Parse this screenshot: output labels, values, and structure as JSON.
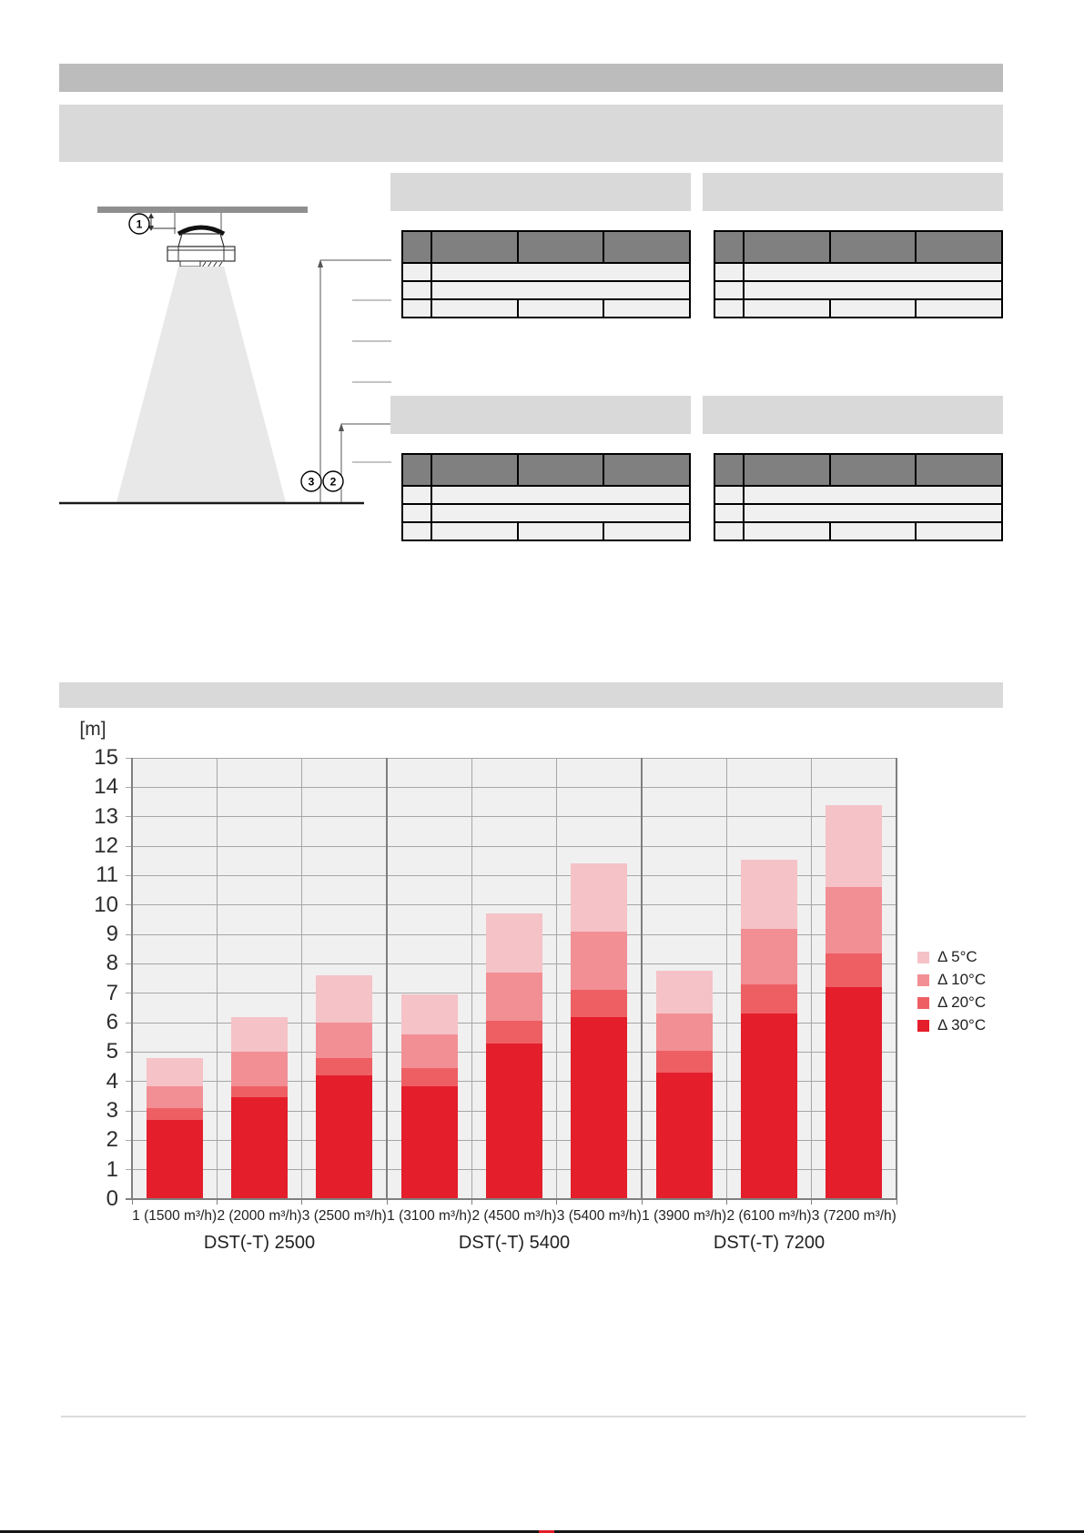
{
  "page": {
    "background": "#ffffff"
  },
  "header_bands": {
    "primary": {
      "text": "",
      "color": "#bcbcbc"
    },
    "secondary": {
      "text": "",
      "color": "#d9d9d9"
    }
  },
  "diagram": {
    "callouts": [
      "1",
      "2",
      "3"
    ],
    "ceiling_color": "#8f8f8f",
    "cone_color": "#e8e8e8"
  },
  "tables": {
    "titles": [
      "",
      "",
      "",
      ""
    ],
    "header_color": "#808080",
    "body_color": "#f0f0f0",
    "border_color": "#000000",
    "title_bar_color": "#d9d9d9"
  },
  "chart_section": {
    "band_text": "",
    "band_color": "#d9d9d9"
  },
  "chart_data": {
    "type": "bar",
    "stacked": true,
    "title": "",
    "ylabel": "[m]",
    "xlabel": "",
    "ylim": [
      0,
      15
    ],
    "ytick_step": 1,
    "grid": true,
    "plot_bg": "#f0f0f0",
    "gridline_color": "#a6a6a6",
    "separator_color": "#7f7f7f",
    "categories": [
      "1 (1500 m³/h)",
      "2 (2000 m³/h)",
      "3 (2500 m³/h)",
      "1 (3100 m³/h)",
      "2 (4500 m³/h)",
      "3 (5400 m³/h)",
      "1 (3900 m³/h)",
      "2 (6100 m³/h)",
      "3 (7200 m³/h)"
    ],
    "groups": [
      {
        "label": "DST(-T) 2500",
        "span": [
          0,
          2
        ]
      },
      {
        "label": "DST(-T) 5400",
        "span": [
          3,
          5
        ]
      },
      {
        "label": "DST(-T) 7200",
        "span": [
          6,
          8
        ]
      }
    ],
    "series": [
      {
        "key": "d30",
        "name": "Δ 30°C",
        "color": "#e41e2b",
        "values": [
          2.7,
          3.45,
          4.2,
          3.85,
          5.3,
          6.2,
          4.3,
          6.3,
          7.2
        ]
      },
      {
        "key": "d20",
        "name": "Δ 20°C",
        "color": "#ee5f64",
        "values": [
          0.4,
          0.4,
          0.6,
          0.6,
          0.75,
          0.9,
          0.75,
          1.0,
          1.15
        ]
      },
      {
        "key": "d10",
        "name": "Δ 10°C",
        "color": "#f28f94",
        "values": [
          0.75,
          1.15,
          1.2,
          1.15,
          1.65,
          2.0,
          1.25,
          1.9,
          2.25
        ]
      },
      {
        "key": "d5",
        "name": "Δ 5°C",
        "color": "#f5c2c7",
        "values": [
          0.95,
          1.2,
          1.6,
          1.35,
          2.0,
          2.3,
          1.45,
          2.35,
          2.8
        ]
      }
    ],
    "cumulative_tops_m": {
      "d30": [
        2.7,
        3.45,
        4.2,
        3.85,
        5.3,
        6.2,
        4.3,
        6.3,
        7.2
      ],
      "d20": [
        3.1,
        3.85,
        4.8,
        4.45,
        6.05,
        7.1,
        5.05,
        7.3,
        8.35
      ],
      "d10": [
        3.85,
        5.0,
        6.0,
        5.6,
        7.7,
        9.1,
        6.3,
        9.2,
        10.6
      ],
      "d5": [
        4.8,
        6.2,
        7.6,
        6.95,
        9.7,
        11.4,
        7.75,
        11.55,
        13.4
      ]
    },
    "legend": {
      "position": "right",
      "order": [
        "Δ 5°C",
        "Δ 10°C",
        "Δ 20°C",
        "Δ 30°C"
      ]
    }
  },
  "footer": {
    "divider_color": "#dcdcdc",
    "next_page_peek_color": "#e41e2b"
  }
}
